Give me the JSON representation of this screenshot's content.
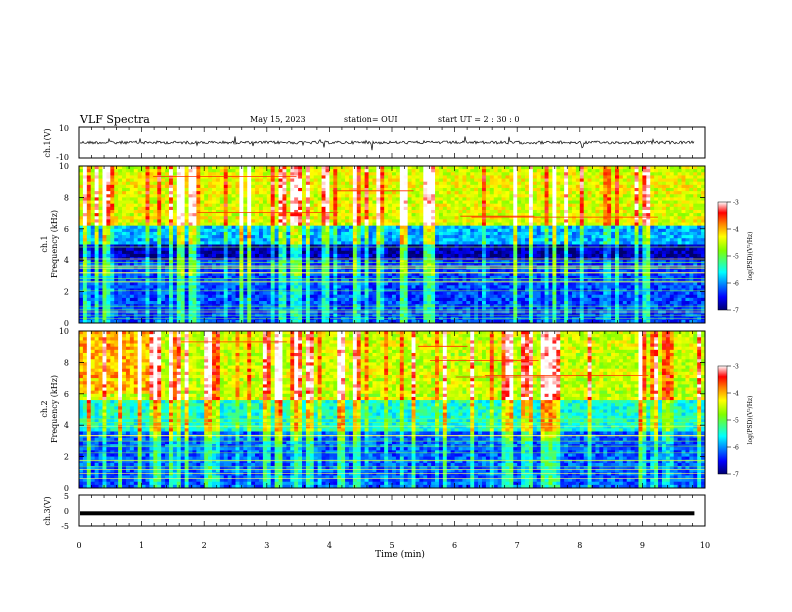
{
  "header": {
    "title": "VLF Spectra",
    "date": "May 15, 2023",
    "station": "station= OUI",
    "start_time": "start UT =  2 : 30 : 0"
  },
  "chart_data": [
    {
      "type": "line",
      "name": "ch1-waveform",
      "ylabel": "ch.1(V)",
      "yticks": [
        "10",
        "-10"
      ],
      "ylim": [
        -10,
        10
      ],
      "xlim": [
        0,
        10
      ],
      "description_values": {
        "baseline": 0,
        "noise_amplitude": 1.5,
        "end_x": 9.83
      }
    },
    {
      "type": "heatmap",
      "name": "ch1-spectrogram",
      "ylabel_line1": "ch.1",
      "ylabel_line2": "Frequency (kHz)",
      "yticks": [
        "0",
        "2",
        "4",
        "6",
        "8",
        "10"
      ],
      "ylim": [
        0,
        10
      ],
      "xlim": [
        0,
        10
      ],
      "colorbar": {
        "label": "log(PSD)(V²/Hz)",
        "ticks": [
          "-3",
          "-4",
          "-5",
          "-6",
          "-7"
        ],
        "range": [
          -7,
          -3
        ],
        "colors": [
          "#00007f",
          "#0000ff",
          "#00ffff",
          "#7fff00",
          "#ffff00",
          "#ff7f00",
          "#ff0000",
          "#ffffff"
        ]
      }
    },
    {
      "type": "heatmap",
      "name": "ch2-spectrogram",
      "ylabel_line1": "ch.2",
      "ylabel_line2": "Frequency (kHz)",
      "yticks": [
        "0",
        "2",
        "4",
        "6",
        "8",
        "10"
      ],
      "ylim": [
        0,
        10
      ],
      "xlim": [
        0,
        10
      ],
      "colorbar": {
        "label": "log(PSD)(V²/Hz)",
        "ticks": [
          "-3",
          "-4",
          "-5",
          "-6",
          "-7"
        ],
        "range": [
          -7,
          -3
        ]
      }
    },
    {
      "type": "line",
      "name": "ch3-waveform",
      "ylabel": "ch.3(V)",
      "yticks": [
        "5",
        "0",
        "-5"
      ],
      "ylim": [
        -5,
        5
      ],
      "xlim": [
        0,
        10
      ],
      "xlabel": "Time (min)",
      "xticks": [
        "0",
        "1",
        "2",
        "3",
        "4",
        "5",
        "6",
        "7",
        "8",
        "9",
        "10"
      ],
      "description_values": {
        "level": -0.9,
        "end_x": 9.83
      }
    }
  ]
}
